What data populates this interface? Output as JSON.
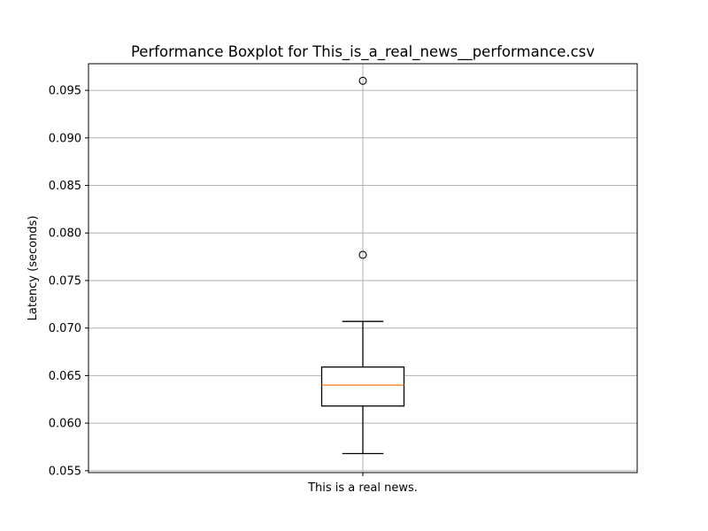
{
  "chart_data": {
    "type": "box",
    "title": "Performance Boxplot for This_is_a_real_news__performance.csv",
    "xlabel": "",
    "ylabel": "Latency (seconds)",
    "categories": [
      "This is a real news."
    ],
    "ylim": [
      0.0548,
      0.0978
    ],
    "yticks": [
      0.055,
      0.06,
      0.065,
      0.07,
      0.075,
      0.08,
      0.085,
      0.09,
      0.095
    ],
    "ytick_labels": [
      "0.055",
      "0.060",
      "0.065",
      "0.070",
      "0.075",
      "0.080",
      "0.085",
      "0.090",
      "0.095"
    ],
    "grid": true,
    "boxes": [
      {
        "category": "This is a real news.",
        "whisker_low": 0.0568,
        "q1": 0.0618,
        "median": 0.064,
        "q3": 0.0659,
        "whisker_high": 0.0707,
        "outliers": [
          0.0777,
          0.096
        ]
      }
    ],
    "colors": {
      "box": "#000000",
      "median": "#ff7f0e",
      "grid": "#b0b0b0",
      "outlier_face": "none"
    }
  }
}
